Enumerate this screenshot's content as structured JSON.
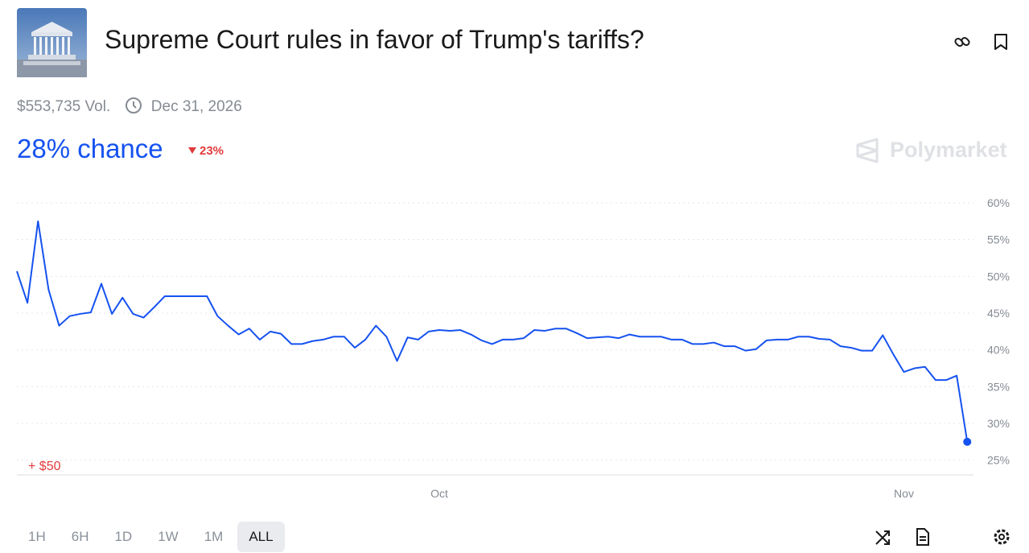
{
  "header": {
    "title": "Supreme Court rules in favor of Trump's tariffs?",
    "volume": "$553,735 Vol.",
    "end_date": "Dec 31, 2026"
  },
  "odds": {
    "chance": "28% chance",
    "change": "23%"
  },
  "brand": "Polymarket",
  "chart_data": {
    "type": "line",
    "color": "#1652f0",
    "categories": [
      null,
      null,
      null,
      null,
      null,
      null,
      null,
      null,
      null,
      null,
      null,
      null,
      null,
      null,
      null,
      null,
      null,
      null,
      null,
      null,
      null,
      null,
      null,
      null,
      null,
      null,
      null,
      null,
      null,
      null,
      null,
      null,
      null,
      null,
      null,
      null,
      null,
      null,
      null,
      null,
      "Oct",
      null,
      null,
      null,
      null,
      null,
      null,
      null,
      null,
      null,
      null,
      null,
      null,
      null,
      null,
      null,
      null,
      null,
      null,
      null,
      null,
      null,
      null,
      null,
      null,
      null,
      null,
      null,
      null,
      null,
      null,
      null,
      null,
      null,
      null,
      null,
      null,
      null,
      null,
      null,
      null,
      null,
      null,
      null,
      "Nov",
      null,
      null,
      null,
      null,
      null,
      null
    ],
    "values": [
      50.7,
      46.4,
      57.5,
      48.2,
      43.3,
      44.6,
      44.9,
      45.1,
      49.0,
      44.9,
      47.1,
      44.9,
      44.4,
      45.8,
      47.3,
      47.3,
      47.3,
      47.3,
      47.3,
      44.6,
      43.3,
      42.1,
      42.9,
      41.4,
      42.5,
      42.2,
      40.8,
      40.8,
      41.2,
      41.4,
      41.8,
      41.8,
      40.3,
      41.4,
      43.3,
      41.8,
      38.5,
      41.7,
      41.4,
      42.5,
      42.7,
      42.6,
      42.7,
      42.1,
      41.3,
      40.8,
      41.4,
      41.4,
      41.6,
      42.7,
      42.6,
      42.9,
      42.9,
      42.3,
      41.6,
      41.7,
      41.8,
      41.6,
      42.1,
      41.8,
      41.8,
      41.8,
      41.4,
      41.4,
      40.8,
      40.8,
      41.0,
      40.5,
      40.5,
      39.9,
      40.1,
      41.3,
      41.4,
      41.4,
      41.8,
      41.8,
      41.5,
      41.4,
      40.5,
      40.3,
      39.9,
      39.9,
      42.0,
      39.4,
      37.0,
      37.5,
      37.7,
      35.9,
      35.9,
      36.5,
      27.5
    ],
    "ylim": [
      23,
      60
    ],
    "yticks": [
      {
        "value": 25,
        "label": "25%"
      },
      {
        "value": 30,
        "label": "30%"
      },
      {
        "value": 35,
        "label": "35%"
      },
      {
        "value": 40,
        "label": "40%"
      },
      {
        "value": 45,
        "label": "45%"
      },
      {
        "value": 50,
        "label": "50%"
      },
      {
        "value": 55,
        "label": "55%"
      },
      {
        "value": 60,
        "label": "60%"
      }
    ],
    "grid": true,
    "annotation": "+ $50"
  },
  "time_ranges": [
    "1H",
    "6H",
    "1D",
    "1W",
    "1M",
    "ALL"
  ],
  "selected_range": 5
}
